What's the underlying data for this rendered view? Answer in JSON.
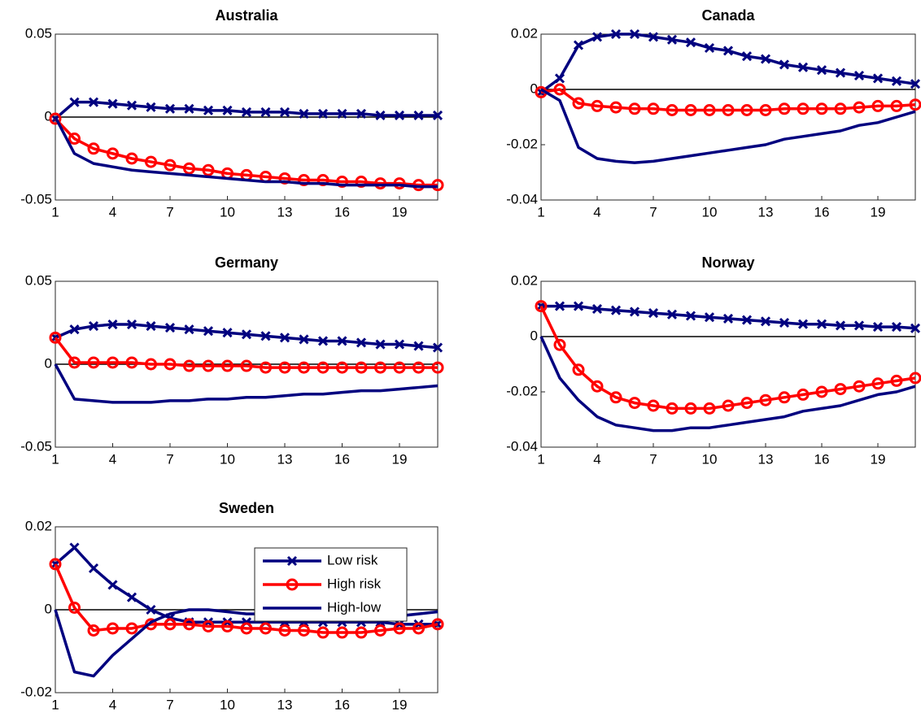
{
  "chart_data": [
    {
      "type": "line",
      "title": "Australia",
      "x": [
        1,
        2,
        3,
        4,
        5,
        6,
        7,
        8,
        9,
        10,
        11,
        12,
        13,
        14,
        15,
        16,
        17,
        18,
        19,
        20,
        21
      ],
      "xlim": [
        1,
        21
      ],
      "xticks": [
        1,
        4,
        7,
        10,
        13,
        16,
        19
      ],
      "ylim": [
        -0.05,
        0.05
      ],
      "yticks": [
        -0.05,
        0,
        0.05
      ],
      "zeroline": true,
      "series": [
        {
          "name": "Low risk",
          "color": "#00007f",
          "marker": "x",
          "values": [
            -0.001,
            0.009,
            0.009,
            0.008,
            0.007,
            0.006,
            0.005,
            0.005,
            0.004,
            0.004,
            0.003,
            0.003,
            0.003,
            0.002,
            0.002,
            0.002,
            0.002,
            0.001,
            0.001,
            0.001,
            0.001
          ]
        },
        {
          "name": "High risk",
          "color": "#ff0000",
          "marker": "o",
          "values": [
            -0.001,
            -0.013,
            -0.019,
            -0.022,
            -0.025,
            -0.027,
            -0.029,
            -0.031,
            -0.032,
            -0.034,
            -0.035,
            -0.036,
            -0.037,
            -0.038,
            -0.038,
            -0.039,
            -0.039,
            -0.04,
            -0.04,
            -0.041,
            -0.041
          ]
        },
        {
          "name": "High-low",
          "color": "#00007f",
          "values": [
            0,
            -0.022,
            -0.028,
            -0.03,
            -0.032,
            -0.033,
            -0.034,
            -0.035,
            -0.036,
            -0.037,
            -0.038,
            -0.039,
            -0.039,
            -0.04,
            -0.04,
            -0.041,
            -0.041,
            -0.041,
            -0.041,
            -0.042,
            -0.042
          ]
        }
      ]
    },
    {
      "type": "line",
      "title": "Canada",
      "x": [
        1,
        2,
        3,
        4,
        5,
        6,
        7,
        8,
        9,
        10,
        11,
        12,
        13,
        14,
        15,
        16,
        17,
        18,
        19,
        20,
        21
      ],
      "xlim": [
        1,
        21
      ],
      "xticks": [
        1,
        4,
        7,
        10,
        13,
        16,
        19
      ],
      "ylim": [
        -0.04,
        0.02
      ],
      "yticks": [
        -0.04,
        -0.02,
        0,
        0.02
      ],
      "zeroline": true,
      "series": [
        {
          "name": "Low risk",
          "color": "#00007f",
          "marker": "x",
          "values": [
            -0.001,
            0.004,
            0.016,
            0.019,
            0.02,
            0.02,
            0.019,
            0.018,
            0.017,
            0.015,
            0.014,
            0.012,
            0.011,
            0.009,
            0.008,
            0.007,
            0.006,
            0.005,
            0.004,
            0.003,
            0.002
          ]
        },
        {
          "name": "High risk",
          "color": "#ff0000",
          "marker": "o",
          "values": [
            -0.001,
            0,
            -0.005,
            -0.006,
            -0.0065,
            -0.007,
            -0.007,
            -0.0075,
            -0.0075,
            -0.0075,
            -0.0075,
            -0.0075,
            -0.0075,
            -0.007,
            -0.007,
            -0.007,
            -0.007,
            -0.0065,
            -0.006,
            -0.006,
            -0.0055
          ]
        },
        {
          "name": "High-low",
          "color": "#00007f",
          "values": [
            0,
            -0.004,
            -0.021,
            -0.025,
            -0.026,
            -0.0265,
            -0.026,
            -0.025,
            -0.024,
            -0.023,
            -0.022,
            -0.021,
            -0.02,
            -0.018,
            -0.017,
            -0.016,
            -0.015,
            -0.013,
            -0.012,
            -0.01,
            -0.008
          ]
        }
      ]
    },
    {
      "type": "line",
      "title": "Germany",
      "x": [
        1,
        2,
        3,
        4,
        5,
        6,
        7,
        8,
        9,
        10,
        11,
        12,
        13,
        14,
        15,
        16,
        17,
        18,
        19,
        20,
        21
      ],
      "xlim": [
        1,
        21
      ],
      "xticks": [
        1,
        4,
        7,
        10,
        13,
        16,
        19
      ],
      "ylim": [
        -0.05,
        0.05
      ],
      "yticks": [
        -0.05,
        0,
        0.05
      ],
      "zeroline": true,
      "series": [
        {
          "name": "Low risk",
          "color": "#00007f",
          "marker": "x",
          "values": [
            0.016,
            0.021,
            0.023,
            0.024,
            0.024,
            0.023,
            0.022,
            0.021,
            0.02,
            0.019,
            0.018,
            0.017,
            0.016,
            0.015,
            0.014,
            0.014,
            0.013,
            0.012,
            0.012,
            0.011,
            0.01
          ]
        },
        {
          "name": "High risk",
          "color": "#ff0000",
          "marker": "o",
          "values": [
            0.016,
            0.001,
            0.001,
            0.001,
            0.001,
            0,
            0,
            -0.001,
            -0.001,
            -0.001,
            -0.001,
            -0.002,
            -0.002,
            -0.002,
            -0.002,
            -0.002,
            -0.002,
            -0.002,
            -0.002,
            -0.002,
            -0.002
          ]
        },
        {
          "name": "High-low",
          "color": "#00007f",
          "values": [
            0,
            -0.021,
            -0.022,
            -0.023,
            -0.023,
            -0.023,
            -0.022,
            -0.022,
            -0.021,
            -0.021,
            -0.02,
            -0.02,
            -0.019,
            -0.018,
            -0.018,
            -0.017,
            -0.016,
            -0.016,
            -0.015,
            -0.014,
            -0.013
          ]
        }
      ]
    },
    {
      "type": "line",
      "title": "Norway",
      "x": [
        1,
        2,
        3,
        4,
        5,
        6,
        7,
        8,
        9,
        10,
        11,
        12,
        13,
        14,
        15,
        16,
        17,
        18,
        19,
        20,
        21
      ],
      "xlim": [
        1,
        21
      ],
      "xticks": [
        1,
        4,
        7,
        10,
        13,
        16,
        19
      ],
      "ylim": [
        -0.04,
        0.02
      ],
      "yticks": [
        -0.04,
        -0.02,
        0,
        0.02
      ],
      "zeroline": true,
      "series": [
        {
          "name": "Low risk",
          "color": "#00007f",
          "marker": "x",
          "values": [
            0.011,
            0.011,
            0.011,
            0.01,
            0.0095,
            0.009,
            0.0085,
            0.008,
            0.0075,
            0.007,
            0.0065,
            0.006,
            0.0055,
            0.005,
            0.0045,
            0.0045,
            0.004,
            0.004,
            0.0035,
            0.0035,
            0.003
          ]
        },
        {
          "name": "High risk",
          "color": "#ff0000",
          "marker": "o",
          "values": [
            0.011,
            -0.003,
            -0.012,
            -0.018,
            -0.022,
            -0.024,
            -0.025,
            -0.026,
            -0.026,
            -0.026,
            -0.025,
            -0.024,
            -0.023,
            -0.022,
            -0.021,
            -0.02,
            -0.019,
            -0.018,
            -0.017,
            -0.016,
            -0.015
          ]
        },
        {
          "name": "High-low",
          "color": "#00007f",
          "values": [
            0,
            -0.015,
            -0.023,
            -0.029,
            -0.032,
            -0.033,
            -0.034,
            -0.034,
            -0.033,
            -0.033,
            -0.032,
            -0.031,
            -0.03,
            -0.029,
            -0.027,
            -0.026,
            -0.025,
            -0.023,
            -0.021,
            -0.02,
            -0.018
          ]
        }
      ]
    },
    {
      "type": "line",
      "title": "Sweden",
      "x": [
        1,
        2,
        3,
        4,
        5,
        6,
        7,
        8,
        9,
        10,
        11,
        12,
        13,
        14,
        15,
        16,
        17,
        18,
        19,
        20,
        21
      ],
      "xlim": [
        1,
        21
      ],
      "xticks": [
        1,
        4,
        7,
        10,
        13,
        16,
        19
      ],
      "ylim": [
        -0.02,
        0.02
      ],
      "yticks": [
        -0.02,
        0,
        0.02
      ],
      "zeroline": true,
      "legend": "northeast",
      "series": [
        {
          "name": "Low risk",
          "color": "#00007f",
          "marker": "x",
          "values": [
            0.011,
            0.015,
            0.01,
            0.006,
            0.003,
            0,
            -0.002,
            -0.003,
            -0.003,
            -0.003,
            -0.003,
            -0.003,
            -0.003,
            -0.003,
            -0.003,
            -0.003,
            -0.003,
            -0.003,
            -0.0035,
            -0.0035,
            -0.0035
          ]
        },
        {
          "name": "High risk",
          "color": "#ff0000",
          "marker": "o",
          "values": [
            0.011,
            0.0005,
            -0.005,
            -0.0045,
            -0.0045,
            -0.0035,
            -0.0035,
            -0.0035,
            -0.004,
            -0.004,
            -0.0045,
            -0.0045,
            -0.005,
            -0.005,
            -0.0055,
            -0.0055,
            -0.0055,
            -0.005,
            -0.0045,
            -0.0045,
            -0.0035
          ]
        },
        {
          "name": "High-low",
          "color": "#00007f",
          "values": [
            0,
            -0.015,
            -0.016,
            -0.011,
            -0.007,
            -0.003,
            -0.001,
            0,
            0,
            -0.0005,
            -0.001,
            -0.001,
            -0.0015,
            -0.002,
            -0.002,
            -0.002,
            -0.002,
            -0.002,
            -0.0015,
            -0.001,
            -0.0005
          ]
        }
      ]
    }
  ]
}
